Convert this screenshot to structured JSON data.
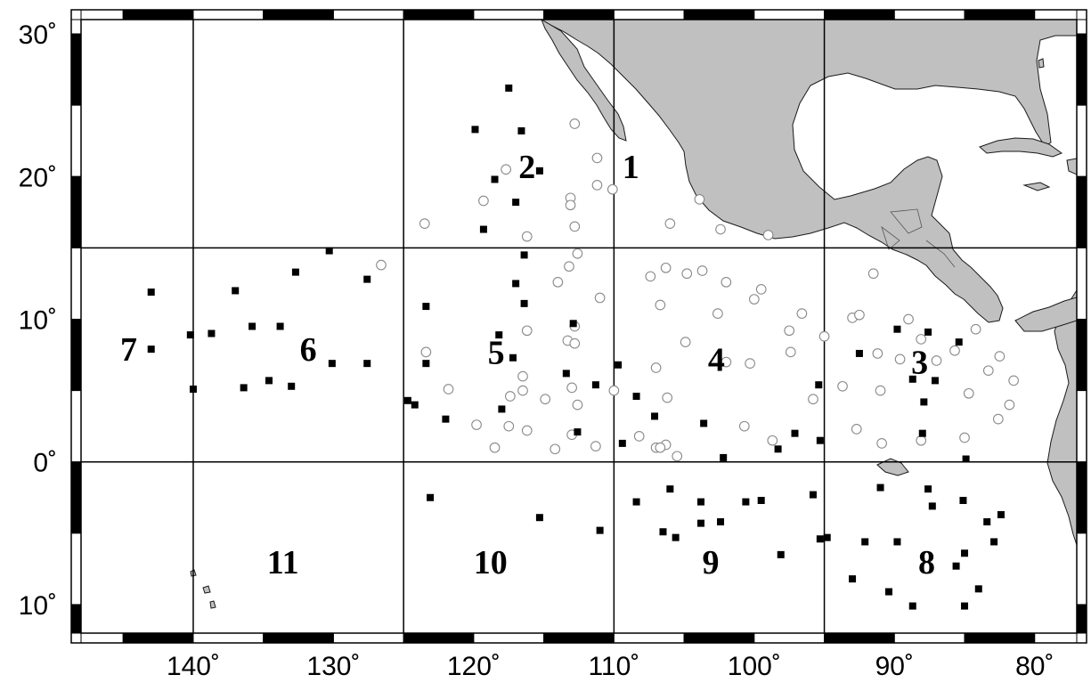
{
  "map": {
    "extent": {
      "lon_min": -148,
      "lon_max": -77,
      "lat_min": -12,
      "lat_max": 31
    },
    "grid_lons": [
      -140,
      -125,
      -110,
      -95
    ],
    "grid_lats": [
      15,
      0
    ],
    "frame_lon_step": 5,
    "frame_lat_step": 5,
    "colors": {
      "land": "#c0c0c0",
      "land_stroke": "#1a1a1a",
      "grid": "#000000",
      "open_marker": "#8a8a8a",
      "solid_marker": "#000000"
    },
    "lat_ticks": [
      {
        "lat": 30,
        "label": "30˚"
      },
      {
        "lat": 20,
        "label": "20˚"
      },
      {
        "lat": 10,
        "label": "10˚"
      },
      {
        "lat": 0,
        "label": "0˚"
      },
      {
        "lat": -10,
        "label": "10˚"
      }
    ],
    "lon_ticks": [
      {
        "lon": -140,
        "label": "140˚"
      },
      {
        "lon": -130,
        "label": "130˚"
      },
      {
        "lon": -120,
        "label": "120˚"
      },
      {
        "lon": -110,
        "label": "110˚"
      },
      {
        "lon": -100,
        "label": "100˚"
      },
      {
        "lon": -90,
        "label": "90˚"
      },
      {
        "lon": -80,
        "label": "80˚"
      }
    ],
    "regions": [
      {
        "label": "1",
        "lon": -108.8,
        "lat": 20.7
      },
      {
        "label": "2",
        "lon": -116.2,
        "lat": 20.7
      },
      {
        "label": "3",
        "lon": -88.2,
        "lat": 7.0
      },
      {
        "label": "4",
        "lon": -102.7,
        "lat": 7.2
      },
      {
        "label": "5",
        "lon": -118.4,
        "lat": 7.7
      },
      {
        "label": "6",
        "lon": -131.8,
        "lat": 7.9
      },
      {
        "label": "7",
        "lon": -144.6,
        "lat": 7.9
      },
      {
        "label": "8",
        "lon": -87.7,
        "lat": -7.0
      },
      {
        "label": "9",
        "lon": -103.1,
        "lat": -7.0
      },
      {
        "label": "10",
        "lon": -118.8,
        "lat": -7.0
      },
      {
        "label": "11",
        "lon": -133.6,
        "lat": -7.0
      }
    ],
    "open_stations": [
      [
        -112.8,
        23.7
      ],
      [
        -117.7,
        20.5
      ],
      [
        -111.2,
        21.3
      ],
      [
        -111.2,
        19.4
      ],
      [
        -110.1,
        19.1
      ],
      [
        -113.1,
        18.5
      ],
      [
        -113.1,
        18.0
      ],
      [
        -119.3,
        18.3
      ],
      [
        -123.5,
        16.7
      ],
      [
        -112.8,
        16.5
      ],
      [
        -116.2,
        15.8
      ],
      [
        -103.9,
        18.4
      ],
      [
        -106.0,
        16.7
      ],
      [
        -102.4,
        16.3
      ],
      [
        -99.0,
        15.9
      ],
      [
        -126.6,
        13.8
      ],
      [
        -113.2,
        13.7
      ],
      [
        -112.6,
        14.6
      ],
      [
        -114.0,
        12.6
      ],
      [
        -111.0,
        11.5
      ],
      [
        -107.4,
        13.0
      ],
      [
        -106.3,
        13.6
      ],
      [
        -104.8,
        13.2
      ],
      [
        -103.7,
        13.4
      ],
      [
        -102.0,
        12.6
      ],
      [
        -100.0,
        11.4
      ],
      [
        -99.5,
        12.1
      ],
      [
        -96.6,
        10.4
      ],
      [
        -102.6,
        10.4
      ],
      [
        -104.9,
        8.4
      ],
      [
        -106.7,
        11.0
      ],
      [
        -110.0,
        5.0
      ],
      [
        -112.6,
        4.0
      ],
      [
        -113.0,
        5.2
      ],
      [
        -114.9,
        4.4
      ],
      [
        -116.5,
        5.0
      ],
      [
        -116.5,
        6.0
      ],
      [
        -117.4,
        4.6
      ],
      [
        -116.2,
        9.2
      ],
      [
        -113.3,
        8.5
      ],
      [
        -112.8,
        8.3
      ],
      [
        -112.8,
        9.5
      ],
      [
        -123.4,
        7.7
      ],
      [
        -121.8,
        5.1
      ],
      [
        -119.8,
        2.6
      ],
      [
        -116.2,
        2.2
      ],
      [
        -117.5,
        2.5
      ],
      [
        -113.0,
        1.9
      ],
      [
        -118.5,
        1.0
      ],
      [
        -114.2,
        0.9
      ],
      [
        -111.3,
        1.1
      ],
      [
        -108.2,
        1.8
      ],
      [
        -107.0,
        1.0
      ],
      [
        -106.3,
        1.2
      ],
      [
        -105.5,
        0.4
      ],
      [
        -106.7,
        1.0
      ],
      [
        -106.2,
        4.5
      ],
      [
        -107.0,
        6.6
      ],
      [
        -100.7,
        2.5
      ],
      [
        -102.0,
        7.0
      ],
      [
        -100.3,
        6.9
      ],
      [
        -98.7,
        1.5
      ],
      [
        -97.5,
        9.2
      ],
      [
        -97.4,
        7.7
      ],
      [
        -95.0,
        8.8
      ],
      [
        -95.8,
        4.4
      ],
      [
        -91.5,
        13.2
      ],
      [
        -93.0,
        10.1
      ],
      [
        -92.5,
        10.3
      ],
      [
        -91.2,
        7.6
      ],
      [
        -89.6,
        7.2
      ],
      [
        -91.0,
        5.0
      ],
      [
        -93.7,
        5.3
      ],
      [
        -92.7,
        2.3
      ],
      [
        -90.9,
        1.3
      ],
      [
        -88.1,
        1.5
      ],
      [
        -89.0,
        10.0
      ],
      [
        -88.1,
        8.6
      ],
      [
        -87.0,
        7.1
      ],
      [
        -85.7,
        7.8
      ],
      [
        -84.2,
        9.3
      ],
      [
        -83.3,
        6.4
      ],
      [
        -84.7,
        4.8
      ],
      [
        -85.0,
        1.7
      ],
      [
        -82.6,
        3.0
      ],
      [
        -81.8,
        4.0
      ],
      [
        -81.5,
        5.7
      ],
      [
        -82.5,
        7.4
      ]
    ],
    "solid_stations": [
      [
        -117.5,
        26.2
      ],
      [
        -116.6,
        23.2
      ],
      [
        -119.9,
        23.3
      ],
      [
        -115.3,
        20.4
      ],
      [
        -118.5,
        19.8
      ],
      [
        -117.0,
        18.2
      ],
      [
        -119.3,
        16.3
      ],
      [
        -130.3,
        14.8
      ],
      [
        -132.7,
        13.3
      ],
      [
        -127.6,
        12.8
      ],
      [
        -137.0,
        12.0
      ],
      [
        -143.0,
        11.9
      ],
      [
        -116.4,
        14.5
      ],
      [
        -117.0,
        12.5
      ],
      [
        -116.4,
        11.1
      ],
      [
        -123.4,
        10.9
      ],
      [
        -112.9,
        9.7
      ],
      [
        -118.2,
        8.9
      ],
      [
        -117.2,
        7.3
      ],
      [
        -135.8,
        9.5
      ],
      [
        -133.8,
        9.5
      ],
      [
        -138.7,
        9.0
      ],
      [
        -140.2,
        8.9
      ],
      [
        -143.0,
        7.9
      ],
      [
        -130.1,
        6.9
      ],
      [
        -127.6,
        6.9
      ],
      [
        -133.0,
        5.3
      ],
      [
        -134.6,
        5.7
      ],
      [
        -136.4,
        5.2
      ],
      [
        -140.0,
        5.1
      ],
      [
        -123.4,
        6.9
      ],
      [
        -124.7,
        4.3
      ],
      [
        -124.2,
        4.0
      ],
      [
        -118.0,
        3.7
      ],
      [
        -122.0,
        3.0
      ],
      [
        -113.4,
        6.2
      ],
      [
        -111.3,
        5.4
      ],
      [
        -109.7,
        6.8
      ],
      [
        -108.4,
        4.6
      ],
      [
        -107.1,
        3.2
      ],
      [
        -109.4,
        1.3
      ],
      [
        -112.6,
        2.1
      ],
      [
        -103.6,
        2.7
      ],
      [
        -102.2,
        0.3
      ],
      [
        -97.1,
        2.0
      ],
      [
        -95.3,
        1.5
      ],
      [
        -98.3,
        0.9
      ],
      [
        -95.4,
        5.4
      ],
      [
        -92.5,
        7.6
      ],
      [
        -89.8,
        9.3
      ],
      [
        -87.6,
        9.1
      ],
      [
        -87.1,
        5.7
      ],
      [
        -88.7,
        5.8
      ],
      [
        -87.9,
        4.2
      ],
      [
        -88.0,
        2.0
      ],
      [
        -85.4,
        8.4
      ],
      [
        -84.9,
        0.2
      ],
      [
        -123.1,
        -2.5
      ],
      [
        -115.3,
        -3.9
      ],
      [
        -111.0,
        -4.8
      ],
      [
        -108.4,
        -2.8
      ],
      [
        -106.0,
        -1.9
      ],
      [
        -106.5,
        -4.9
      ],
      [
        -105.6,
        -5.3
      ],
      [
        -103.8,
        -2.8
      ],
      [
        -103.8,
        -4.3
      ],
      [
        -102.4,
        -4.2
      ],
      [
        -100.6,
        -2.8
      ],
      [
        -99.5,
        -2.7
      ],
      [
        -98.1,
        -6.5
      ],
      [
        -95.8,
        -2.3
      ],
      [
        -95.3,
        -5.4
      ],
      [
        -94.8,
        -5.3
      ],
      [
        -91.0,
        -1.8
      ],
      [
        -92.1,
        -5.6
      ],
      [
        -93.0,
        -8.2
      ],
      [
        -90.4,
        -9.1
      ],
      [
        -89.8,
        -5.6
      ],
      [
        -87.6,
        -1.9
      ],
      [
        -87.3,
        -3.1
      ],
      [
        -85.6,
        -7.3
      ],
      [
        -85.0,
        -6.4
      ],
      [
        -85.1,
        -2.7
      ],
      [
        -83.4,
        -4.2
      ],
      [
        -82.9,
        -5.6
      ],
      [
        -82.4,
        -3.7
      ],
      [
        -84.0,
        -8.9
      ],
      [
        -85.0,
        -10.1
      ],
      [
        -88.7,
        -10.1
      ]
    ]
  }
}
